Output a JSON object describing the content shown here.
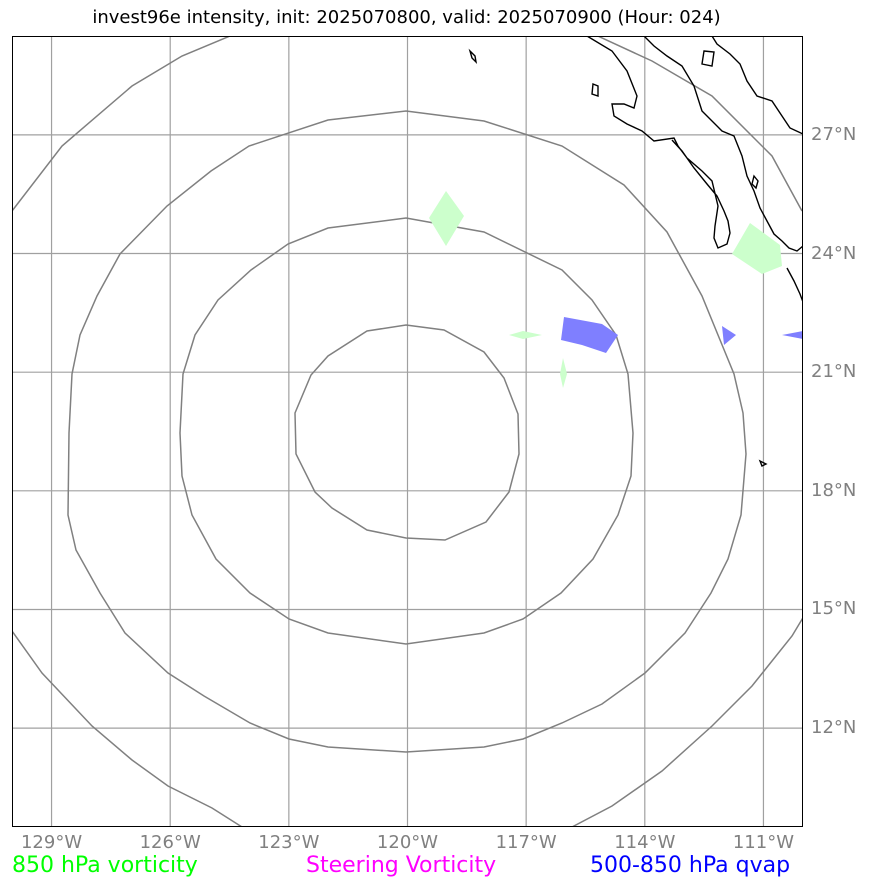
{
  "title": "invest96e intensity, init: 2025070800, valid: 2025070900 (Hour: 024)",
  "map": {
    "extent": {
      "lon_min": -130,
      "lon_max": -110,
      "lat_min": 9.5,
      "lat_max": 29.5
    },
    "center": {
      "lon": -120,
      "lat": 19.5
    },
    "range_ring_count": 4,
    "colors": {
      "grid": "#a0a0a0",
      "rings": "#808080",
      "coast": "#000000",
      "vorticity_fill": "#ccffcc",
      "qvap_fill": "#7f7fff"
    },
    "lat_labels": [
      {
        "value": 27,
        "text": "27°N"
      },
      {
        "value": 24,
        "text": "24°N"
      },
      {
        "value": 21,
        "text": "21°N"
      },
      {
        "value": 18,
        "text": "18°N"
      },
      {
        "value": 15,
        "text": "15°N"
      },
      {
        "value": 12,
        "text": "12°N"
      }
    ],
    "lon_labels": [
      {
        "value": -129,
        "text": "129°W"
      },
      {
        "value": -126,
        "text": "126°W"
      },
      {
        "value": -123,
        "text": "123°W"
      },
      {
        "value": -120,
        "text": "120°W"
      },
      {
        "value": -117,
        "text": "117°W"
      },
      {
        "value": -114,
        "text": "114°W"
      },
      {
        "value": -111,
        "text": "111°W"
      }
    ]
  },
  "legend": {
    "vorticity_850": {
      "text": "850 hPa vorticity",
      "color": "#00ff00"
    },
    "steering_vorticity": {
      "text": "Steering Vorticity",
      "color": "#ff00ff"
    },
    "qvap": {
      "text": "500-850 hPa qvap",
      "color": "#0000ff"
    }
  }
}
